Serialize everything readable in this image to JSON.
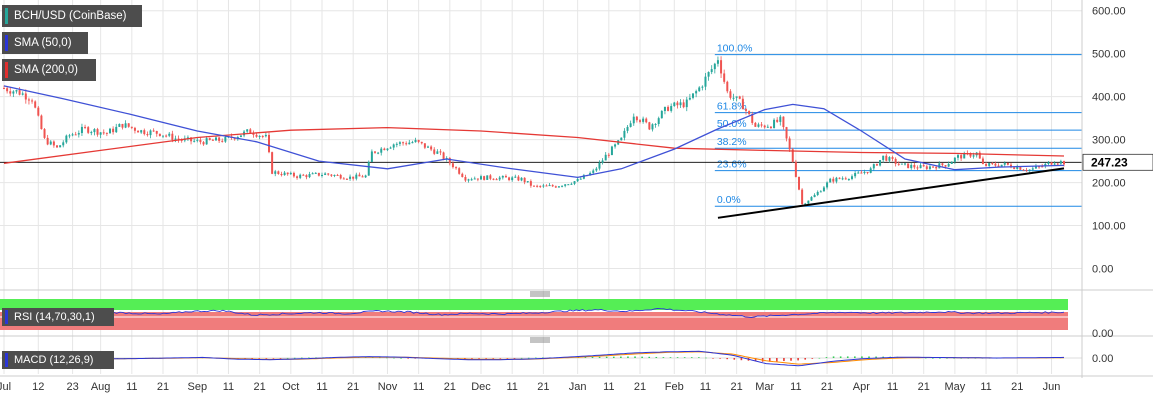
{
  "legend": {
    "price": {
      "label": "BCH/USD (CoinBase)",
      "color": "#26a69a"
    },
    "sma50": {
      "label": "SMA (50,0)",
      "color": "#2b35d6"
    },
    "sma200": {
      "label": "SMA (200,0)",
      "color": "#e03030"
    },
    "rsi": {
      "label": "RSI (14,70,30,1)",
      "color": "#2b35d6"
    },
    "macd": {
      "label": "MACD (12,26,9)",
      "color": "#2b35d6"
    }
  },
  "colors": {
    "up": "#26a69a",
    "down": "#ef5350",
    "sma50": "#3f51d6",
    "sma200": "#e53935",
    "fib": "#1e88e5",
    "fib_label": "#1e88e5",
    "trend": "#000000",
    "rsi_overbought_zone": "#55ee55",
    "rsi_oversold_zone": "#f07c7c",
    "macd_line": "#2b35d6",
    "signal_line": "#ff8c00",
    "hist_pos": "#33cc55",
    "hist_neg": "#e53935",
    "grid": "#e6e6e6",
    "price_tag_bg": "#ffffff"
  },
  "current_price": {
    "value": 247.23,
    "label": "247.23"
  },
  "chart_data": [
    {
      "type": "candlestick",
      "title": "BCH/USD (CoinBase)",
      "x_range": [
        "2019-07-01",
        "2020-06-05"
      ],
      "y_range": [
        -50,
        625
      ],
      "y_ticks": [
        "0.00",
        "100.00",
        "200.00",
        "300.00",
        "400.00",
        "500.00",
        "600.00"
      ],
      "y_tick_values": [
        0,
        100,
        200,
        300,
        400,
        500,
        600
      ],
      "x_ticks": [
        {
          "date": "2019-07-01",
          "label": "Jul"
        },
        {
          "date": "2019-07-12",
          "label": "12"
        },
        {
          "date": "2019-07-23",
          "label": "23"
        },
        {
          "date": "2019-08-01",
          "label": "Aug"
        },
        {
          "date": "2019-08-11",
          "label": "11"
        },
        {
          "date": "2019-08-21",
          "label": "21"
        },
        {
          "date": "2019-09-01",
          "label": "Sep"
        },
        {
          "date": "2019-09-11",
          "label": "11"
        },
        {
          "date": "2019-09-21",
          "label": "21"
        },
        {
          "date": "2019-10-01",
          "label": "Oct"
        },
        {
          "date": "2019-10-11",
          "label": "11"
        },
        {
          "date": "2019-10-21",
          "label": "21"
        },
        {
          "date": "2019-11-01",
          "label": "Nov"
        },
        {
          "date": "2019-11-11",
          "label": "11"
        },
        {
          "date": "2019-11-21",
          "label": "21"
        },
        {
          "date": "2019-12-01",
          "label": "Dec"
        },
        {
          "date": "2019-12-11",
          "label": "11"
        },
        {
          "date": "2019-12-21",
          "label": "21"
        },
        {
          "date": "2020-01-01",
          "label": "Jan"
        },
        {
          "date": "2020-01-11",
          "label": "11"
        },
        {
          "date": "2020-01-21",
          "label": "21"
        },
        {
          "date": "2020-02-01",
          "label": "Feb"
        },
        {
          "date": "2020-02-11",
          "label": "11"
        },
        {
          "date": "2020-02-21",
          "label": "21"
        },
        {
          "date": "2020-03-01",
          "label": "Mar"
        },
        {
          "date": "2020-03-11",
          "label": "11"
        },
        {
          "date": "2020-03-21",
          "label": "21"
        },
        {
          "date": "2020-04-01",
          "label": "Apr"
        },
        {
          "date": "2020-04-11",
          "label": "11"
        },
        {
          "date": "2020-04-21",
          "label": "21"
        },
        {
          "date": "2020-05-01",
          "label": "May"
        },
        {
          "date": "2020-05-11",
          "label": "11"
        },
        {
          "date": "2020-05-21",
          "label": "21"
        },
        {
          "date": "2020-06-01",
          "label": "Jun"
        }
      ],
      "price_path": [
        [
          "2019-07-01",
          420
        ],
        [
          "2019-07-06",
          410
        ],
        [
          "2019-07-10",
          395
        ],
        [
          "2019-07-14",
          300
        ],
        [
          "2019-07-18",
          280
        ],
        [
          "2019-07-22",
          310
        ],
        [
          "2019-07-27",
          325
        ],
        [
          "2019-08-03",
          315
        ],
        [
          "2019-08-08",
          335
        ],
        [
          "2019-08-14",
          320
        ],
        [
          "2019-08-20",
          315
        ],
        [
          "2019-08-26",
          300
        ],
        [
          "2019-09-02",
          295
        ],
        [
          "2019-09-10",
          300
        ],
        [
          "2019-09-18",
          320
        ],
        [
          "2019-09-23",
          305
        ],
        [
          "2019-09-25",
          225
        ],
        [
          "2019-10-03",
          215
        ],
        [
          "2019-10-12",
          220
        ],
        [
          "2019-10-20",
          212
        ],
        [
          "2019-10-25",
          215
        ],
        [
          "2019-10-27",
          270
        ],
        [
          "2019-11-03",
          290
        ],
        [
          "2019-11-10",
          295
        ],
        [
          "2019-11-17",
          270
        ],
        [
          "2019-11-22",
          240
        ],
        [
          "2019-11-26",
          210
        ],
        [
          "2019-12-05",
          212
        ],
        [
          "2019-12-14",
          208
        ],
        [
          "2019-12-18",
          190
        ],
        [
          "2019-12-25",
          192
        ],
        [
          "2020-01-01",
          205
        ],
        [
          "2020-01-06",
          225
        ],
        [
          "2020-01-10",
          262
        ],
        [
          "2020-01-15",
          300
        ],
        [
          "2020-01-19",
          360
        ],
        [
          "2020-01-24",
          330
        ],
        [
          "2020-01-30",
          375
        ],
        [
          "2020-02-05",
          385
        ],
        [
          "2020-02-09",
          420
        ],
        [
          "2020-02-14",
          475
        ],
        [
          "2020-02-15",
          490
        ],
        [
          "2020-02-18",
          410
        ],
        [
          "2020-02-23",
          380
        ],
        [
          "2020-02-27",
          330
        ],
        [
          "2020-03-03",
          335
        ],
        [
          "2020-03-06",
          345
        ],
        [
          "2020-03-08",
          300
        ],
        [
          "2020-03-10",
          250
        ],
        [
          "2020-03-12",
          185
        ],
        [
          "2020-03-13",
          150
        ],
        [
          "2020-03-17",
          170
        ],
        [
          "2020-03-22",
          205
        ],
        [
          "2020-03-29",
          215
        ],
        [
          "2020-04-04",
          230
        ],
        [
          "2020-04-08",
          260
        ],
        [
          "2020-04-14",
          240
        ],
        [
          "2020-04-21",
          235
        ],
        [
          "2020-04-28",
          242
        ],
        [
          "2020-05-02",
          260
        ],
        [
          "2020-05-08",
          268
        ],
        [
          "2020-05-10",
          240
        ],
        [
          "2020-05-17",
          242
        ],
        [
          "2020-05-25",
          230
        ],
        [
          "2020-05-29",
          238
        ],
        [
          "2020-06-02",
          250
        ],
        [
          "2020-06-05",
          247
        ]
      ],
      "sma50_path": [
        [
          "2019-07-01",
          425
        ],
        [
          "2019-07-20",
          395
        ],
        [
          "2019-08-10",
          360
        ],
        [
          "2019-09-01",
          320
        ],
        [
          "2019-09-20",
          295
        ],
        [
          "2019-10-10",
          250
        ],
        [
          "2019-11-01",
          232
        ],
        [
          "2019-11-20",
          255
        ],
        [
          "2019-12-10",
          233
        ],
        [
          "2020-01-01",
          212
        ],
        [
          "2020-01-15",
          232
        ],
        [
          "2020-02-01",
          278
        ],
        [
          "2020-02-15",
          325
        ],
        [
          "2020-03-01",
          370
        ],
        [
          "2020-03-10",
          382
        ],
        [
          "2020-03-20",
          372
        ],
        [
          "2020-04-01",
          320
        ],
        [
          "2020-04-15",
          255
        ],
        [
          "2020-05-01",
          230
        ],
        [
          "2020-05-15",
          236
        ],
        [
          "2020-06-05",
          240
        ]
      ],
      "sma200_path": [
        [
          "2019-07-01",
          245
        ],
        [
          "2019-08-01",
          275
        ],
        [
          "2019-09-01",
          305
        ],
        [
          "2019-10-01",
          322
        ],
        [
          "2019-11-01",
          328
        ],
        [
          "2019-12-01",
          320
        ],
        [
          "2020-01-01",
          305
        ],
        [
          "2020-02-01",
          280
        ],
        [
          "2020-03-01",
          275
        ],
        [
          "2020-04-01",
          270
        ],
        [
          "2020-05-01",
          268
        ],
        [
          "2020-06-05",
          262
        ]
      ],
      "fibonacci": {
        "start_date": "2020-02-14",
        "levels": [
          {
            "label": "100.0%",
            "value": 498
          },
          {
            "label": "61.8%",
            "value": 363
          },
          {
            "label": "50.0%",
            "value": 322
          },
          {
            "label": "38.2%",
            "value": 280
          },
          {
            "label": "23.6%",
            "value": 228
          },
          {
            "label": "0.0%",
            "value": 145
          }
        ]
      },
      "trendline": [
        [
          "2020-02-15",
          118
        ],
        [
          "2020-06-05",
          233
        ]
      ],
      "current_price_line": 247.23
    },
    {
      "type": "line",
      "title": "RSI (14,70,30,1)",
      "y_range": [
        0,
        100
      ],
      "overbought": 70,
      "oversold": 30,
      "y_ticks": [
        "0.00"
      ],
      "values_approx": [
        45,
        52,
        48,
        55,
        50,
        44,
        58,
        62,
        40,
        46,
        52,
        47,
        60,
        55,
        42,
        48,
        45,
        50,
        60,
        66,
        58,
        72,
        60,
        44,
        30,
        40,
        48,
        54,
        50,
        52,
        56,
        50,
        49,
        52,
        54
      ]
    },
    {
      "type": "line",
      "title": "MACD (12,26,9)",
      "y_ticks": [
        "0.00"
      ],
      "macd_approx": [
        5,
        0,
        -4,
        -3,
        -2,
        0,
        2,
        -4,
        -6,
        -3,
        2,
        5,
        3,
        -2,
        -6,
        -6,
        -3,
        3,
        10,
        18,
        22,
        24,
        10,
        -20,
        -28,
        -12,
        -2,
        3,
        2,
        1,
        0,
        1,
        2
      ],
      "signal_approx": [
        4,
        1,
        -2,
        -3,
        -2,
        -1,
        1,
        -2,
        -5,
        -4,
        0,
        3,
        3,
        0,
        -4,
        -5,
        -4,
        1,
        7,
        14,
        20,
        22,
        14,
        -10,
        -22,
        -16,
        -6,
        0,
        2,
        1,
        0,
        0,
        1
      ]
    }
  ]
}
